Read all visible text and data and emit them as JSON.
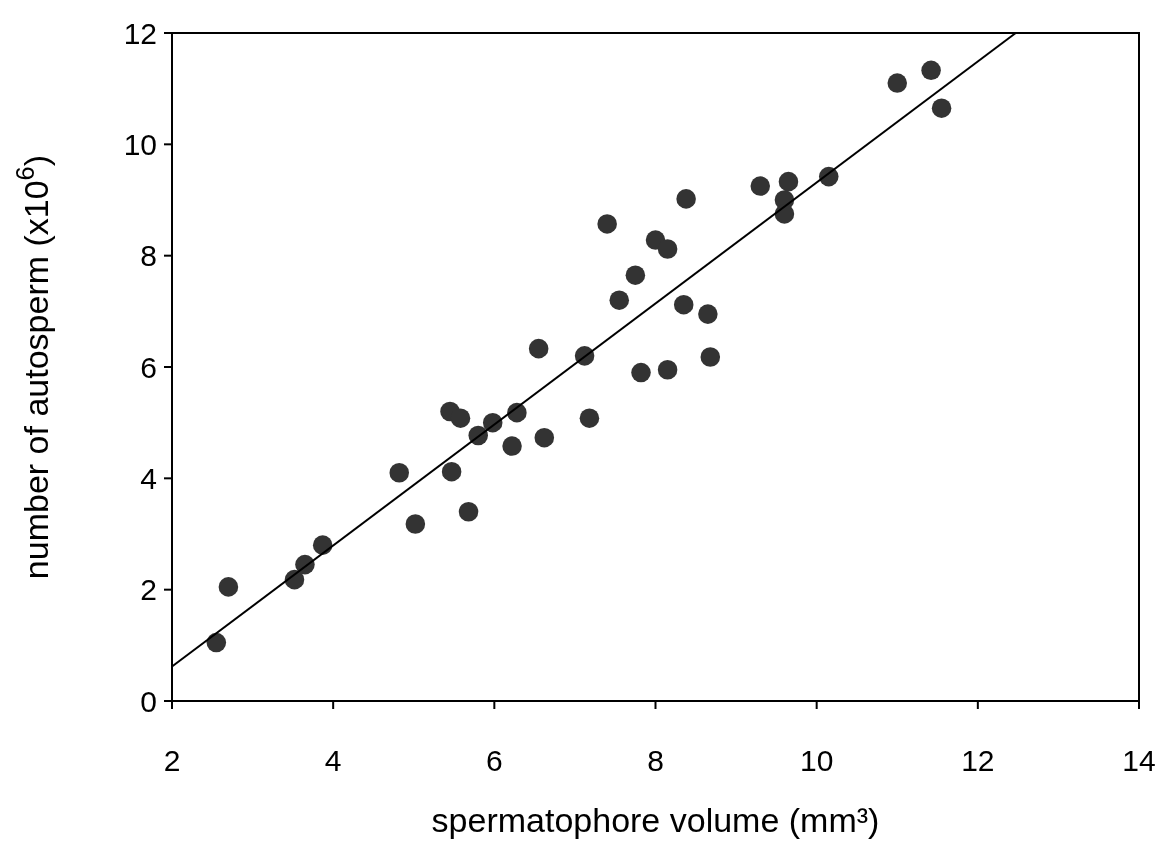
{
  "chart_data": {
    "type": "scatter",
    "xlabel": "spermatophore volume (mm³)",
    "ylabel": "number of autosperm (x10$^{6}$)",
    "xlim": [
      2,
      14
    ],
    "ylim": [
      0,
      12
    ],
    "xticks": [
      2,
      4,
      6,
      8,
      10,
      12,
      14
    ],
    "yticks": [
      0,
      2,
      4,
      6,
      8,
      10,
      12
    ],
    "grid": false,
    "marker": "circle",
    "series": [
      {
        "color": "#333333",
        "x": [
          2.55,
          2.7,
          3.52,
          3.65,
          3.87,
          4.82,
          5.02,
          5.45,
          5.47,
          5.58,
          5.68,
          5.8,
          5.98,
          6.22,
          6.28,
          6.55,
          6.62,
          7.12,
          7.18,
          7.4,
          7.55,
          7.75,
          7.82,
          8.0,
          8.15,
          8.15,
          8.35,
          8.38,
          8.65,
          8.68,
          9.3,
          9.6,
          9.6,
          9.65,
          10.15,
          11.0,
          11.42,
          11.55
        ],
        "values": [
          1.05,
          2.05,
          2.18,
          2.45,
          2.8,
          4.1,
          3.18,
          5.2,
          4.12,
          5.08,
          3.4,
          4.77,
          5.0,
          4.58,
          5.18,
          6.33,
          4.73,
          6.2,
          5.08,
          8.57,
          7.2,
          7.65,
          5.9,
          8.28,
          8.12,
          5.95,
          7.12,
          9.02,
          6.95,
          6.18,
          9.25,
          9.0,
          8.75,
          9.33,
          9.42,
          11.1,
          11.33,
          10.65
        ]
      },
      {
        "type": "line",
        "color": "#000000",
        "x": [
          2,
          12.47
        ],
        "values": [
          0.62,
          12
        ],
        "line_style": "solid",
        "marker": "none"
      }
    ]
  }
}
